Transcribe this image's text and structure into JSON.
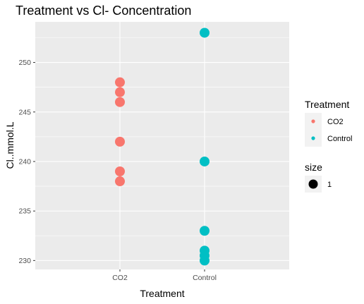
{
  "chart_data": {
    "type": "scatter",
    "title": "Treatment vs Cl- Concentration",
    "xlabel": "Treatment",
    "ylabel": "Cl..mmol.L",
    "categories": [
      "CO2",
      "Control"
    ],
    "ylim": [
      229.1,
      254.1
    ],
    "yticks": [
      230,
      235,
      240,
      245,
      250
    ],
    "grid": true,
    "legend_position": "right",
    "series": [
      {
        "name": "CO2",
        "category": "CO2",
        "color": "#F8766D",
        "values": [
          248,
          247,
          246,
          242,
          239,
          238
        ]
      },
      {
        "name": "Control",
        "category": "Control",
        "color": "#00BFC4",
        "values": [
          253,
          240,
          233,
          231,
          230.5,
          230
        ]
      }
    ],
    "legends": [
      {
        "title": "Treatment",
        "entries": [
          {
            "label": "CO2",
            "color": "#F8766D"
          },
          {
            "label": "Control",
            "color": "#00BFC4"
          }
        ]
      },
      {
        "title": "size",
        "entries": [
          {
            "label": "1",
            "color": "#000000"
          }
        ]
      }
    ]
  }
}
